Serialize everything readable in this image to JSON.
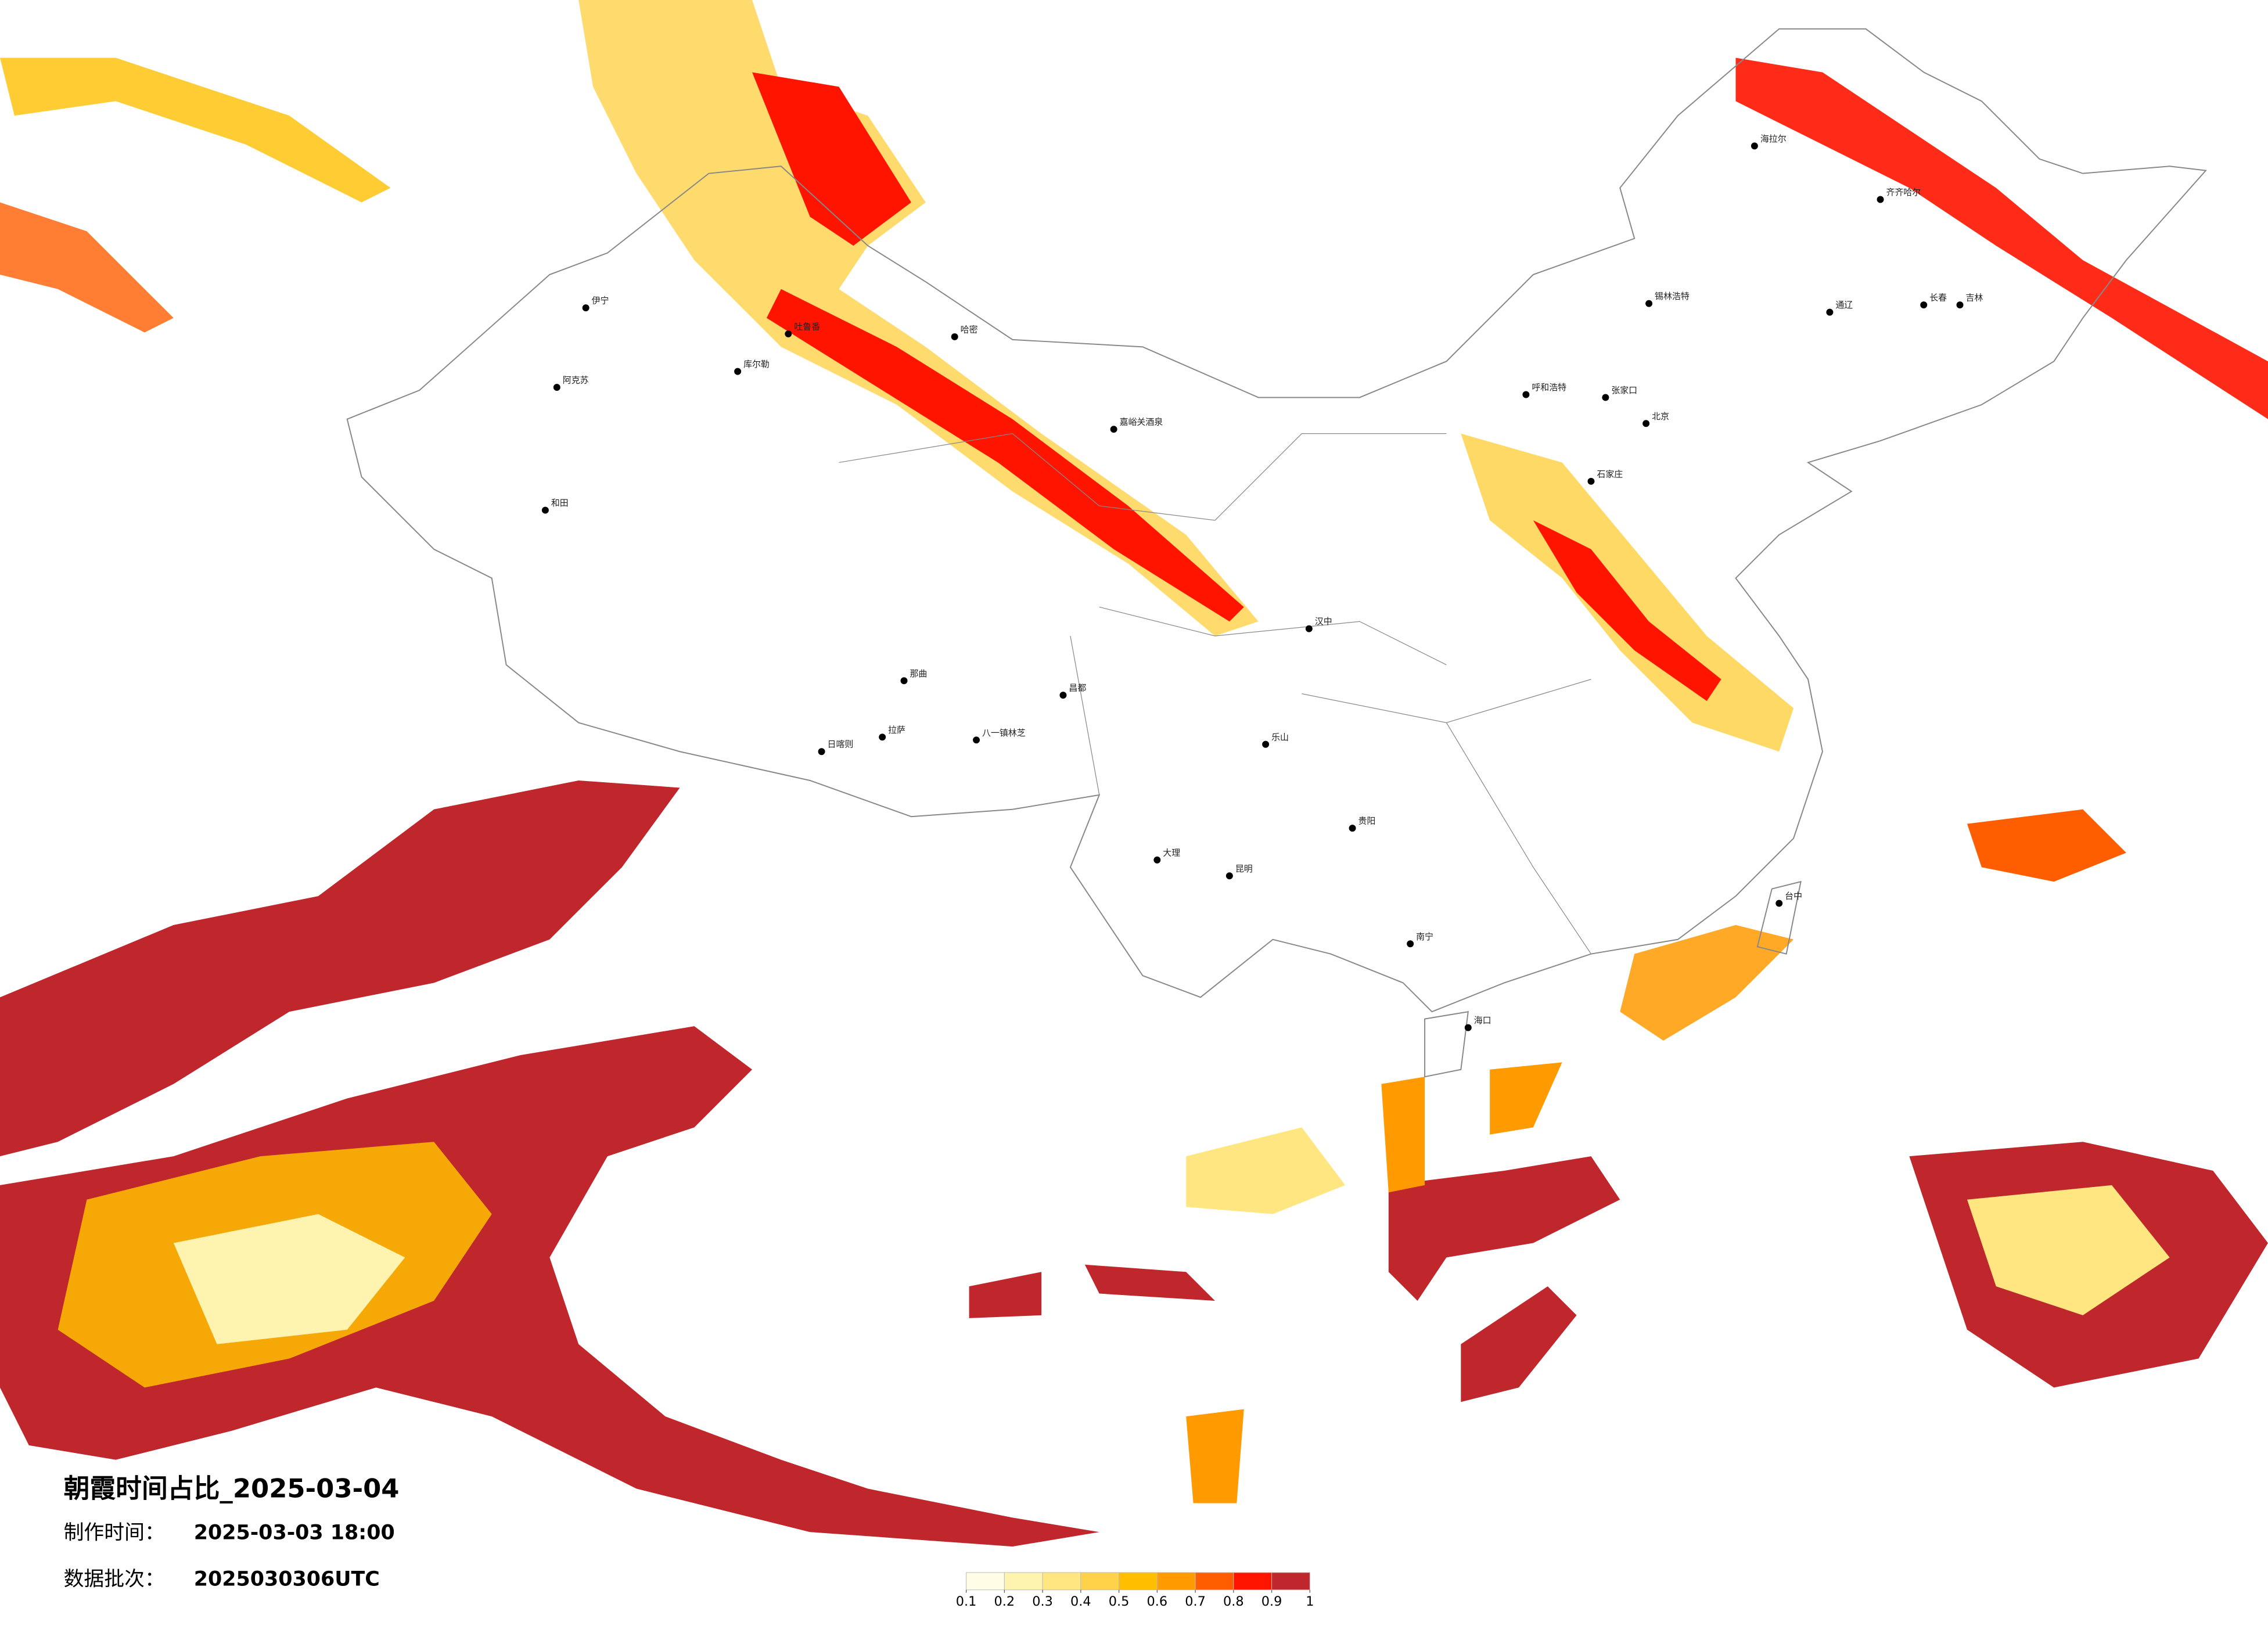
{
  "title": "朝霞时间占比_2025-03-04",
  "info": [
    {
      "label": "制作时间：",
      "value": "2025-03-03 18:00"
    },
    {
      "label": "数据批次：",
      "value": "2025030306UTC"
    }
  ],
  "legend": {
    "ticks": [
      0.1,
      0.2,
      0.3,
      0.4,
      0.5,
      0.6,
      0.7,
      0.8,
      0.9,
      1
    ],
    "colors": [
      "#fffde6",
      "#fff3b0",
      "#ffe680",
      "#ffd24a",
      "#ffbf00",
      "#ff9a00",
      "#ff5e00",
      "#ff1400",
      "#c0272d"
    ]
  },
  "cities": [
    "海拉尔",
    "齐齐哈尔",
    "锡林浩特",
    "呼和浩特",
    "张家口",
    "北京",
    "石家庄",
    "长春",
    "吉林",
    "通辽",
    "伊宁",
    "阿克苏",
    "和田",
    "哈密",
    "吐鲁番",
    "库尔勒",
    "嘉峪关酒泉",
    "那曲",
    "拉萨",
    "日喀则",
    "八一镇林芝",
    "昌都",
    "大理",
    "昆明",
    "贵阳",
    "南宁",
    "海口",
    "台中",
    "乐山",
    "汉中"
  ]
}
